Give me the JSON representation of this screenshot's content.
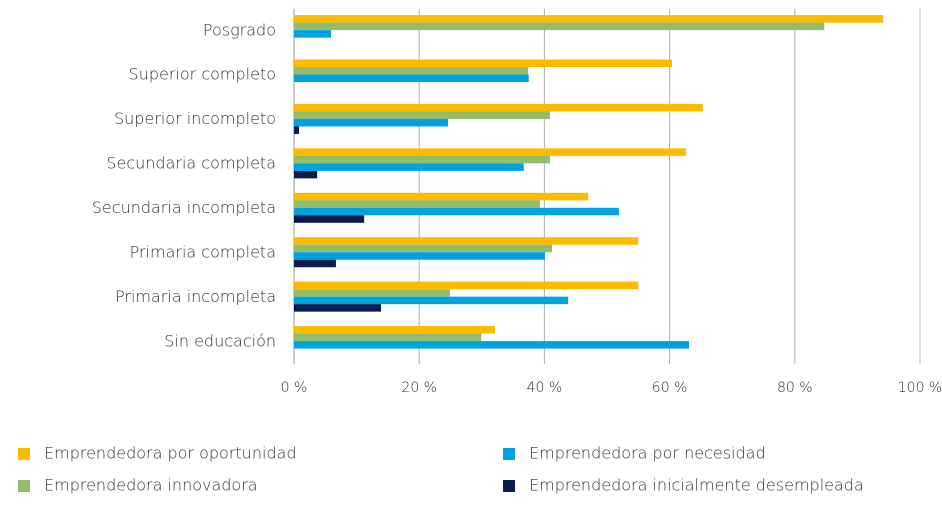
{
  "chart_data": {
    "type": "hbar",
    "categories": [
      "Posgrado",
      "Superior completo",
      "Superior incompleto",
      "Secundaria completa",
      "Secundaria incompleta",
      "Primaria completa",
      "Primaria incompleta",
      "Sin educación"
    ],
    "series": [
      {
        "name": "Emprendedora por oportunidad",
        "color": "#fdbb00",
        "values": [
          94.1,
          60.4,
          65.3,
          62.6,
          47,
          55,
          55,
          32.1
        ]
      },
      {
        "name": "Emprendedora innovadora",
        "color": "#93bd6a",
        "values": [
          84.7,
          37.4,
          40.9,
          40.9,
          39.3,
          41.2,
          24.9,
          29.9
        ]
      },
      {
        "name": "Emprendedora por necesidad",
        "color": "#00a3e0",
        "values": [
          5.9,
          37.5,
          24.6,
          36.7,
          51.9,
          40.1,
          43.8,
          63.1
        ]
      },
      {
        "name": "Emprendedora inicialmente desempleada",
        "color": "#0d1c4f",
        "values": [
          0,
          0,
          0.8,
          3.7,
          11.2,
          6.7,
          13.9,
          0
        ]
      }
    ],
    "xlim": [
      0,
      100
    ],
    "xticks": [
      {
        "value": 0,
        "label": "0 %"
      },
      {
        "value": 20,
        "label": "20 %"
      },
      {
        "value": 40,
        "label": "40 %"
      },
      {
        "value": 60,
        "label": "60 %"
      },
      {
        "value": 80,
        "label": "80 %"
      },
      {
        "value": 100,
        "label": "100 %"
      }
    ],
    "grid": true
  }
}
